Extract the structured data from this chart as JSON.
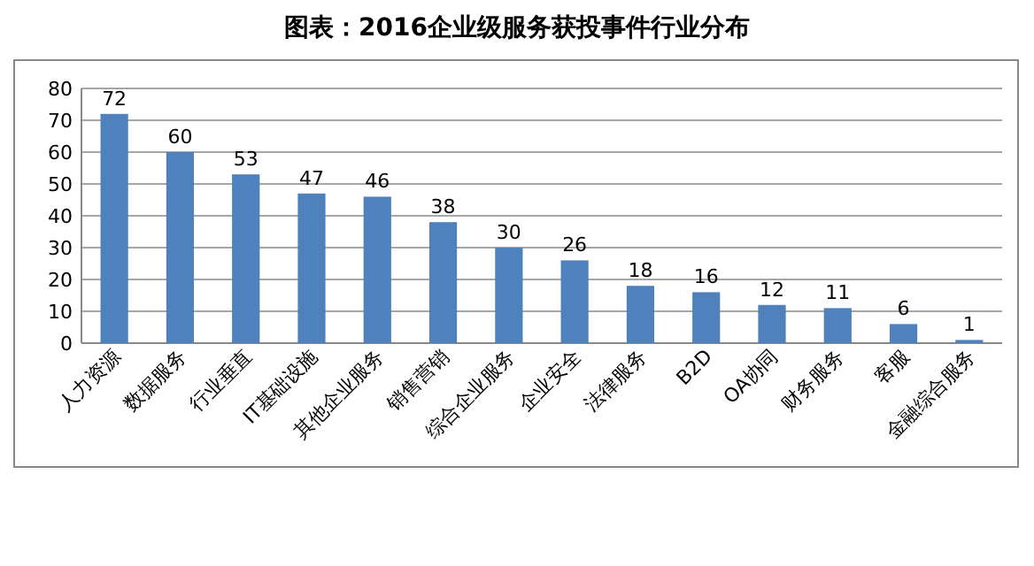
{
  "chart_data": {
    "type": "bar",
    "title": "图表：2016企业级服务获投事件行业分布",
    "categories": [
      "人力资源",
      "数据服务",
      "行业垂直",
      "IT基础设施",
      "其他企业服务",
      "销售营销",
      "综合企业服务",
      "企业安全",
      "法律服务",
      "B2D",
      "OA协同",
      "财务服务",
      "客服",
      "金融综合服务"
    ],
    "values": [
      72,
      60,
      53,
      47,
      46,
      38,
      30,
      26,
      18,
      16,
      12,
      11,
      6,
      1
    ],
    "color": "#4f81bd",
    "ylim": [
      0,
      80
    ],
    "yticks": [
      0,
      10,
      20,
      30,
      40,
      50,
      60,
      70,
      80
    ],
    "grid": "y",
    "data_labels": true
  }
}
